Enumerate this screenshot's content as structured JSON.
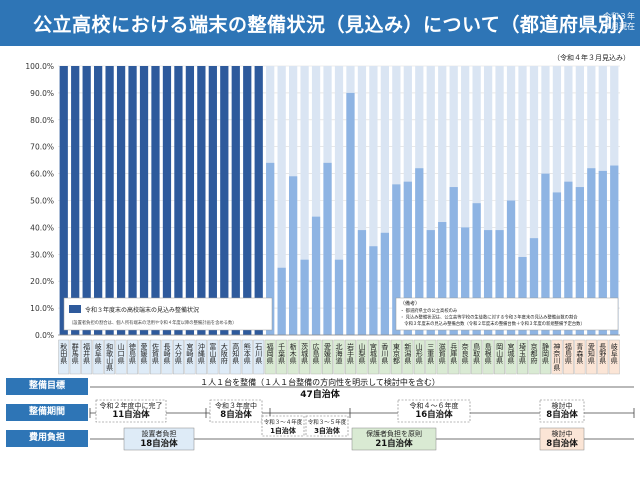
{
  "header": {
    "title": "公立高校における端末の整備状況（見込み）について（都道府県別）",
    "date": "令和３年８月現在"
  },
  "as_of": "（令和４年３月見込み）",
  "legend": {
    "label": "令和３年度末の高校端末の見込み整備状況",
    "sub": "（設置者負担の割合は、個人所有端末の活用や令和４年度以降の整備計画を含める数）",
    "notes_title": "（備考）",
    "notes": [
      "・ 都道府県立の公立高校のみ",
      "・ 見込み整備状況は、公立高等学校の生徒数に対する令和３年度末の見込み整備台数の割合",
      "　令和３年度末の見込み整備台数（令和２年度末の整備台数＋令和３年度の新規整備予定台数）"
    ]
  },
  "colors": {
    "header": "#2e75b6",
    "dark_bar": "#2e5a9c",
    "light_bar": "#8eb4e3",
    "bar_bg": "#dae5f3",
    "green": "#d9ead3",
    "orange": "#fbe5d6",
    "blue_label": "#deebf7"
  },
  "chart_data": {
    "type": "bar",
    "ylim": [
      0,
      100
    ],
    "yticks": [
      "0.0%",
      "10.0%",
      "20.0%",
      "30.0%",
      "40.0%",
      "50.0%",
      "60.0%",
      "70.0%",
      "80.0%",
      "90.0%",
      "100.0%"
    ],
    "categories": [
      "秋田県",
      "群馬県",
      "福井県",
      "岐阜県",
      "和歌山県",
      "山口県",
      "徳島県",
      "愛媛県",
      "佐賀県",
      "長崎県",
      "大分県",
      "宮崎県",
      "沖縄県",
      "富山県",
      "大阪府",
      "高知県",
      "熊本県",
      "石川県",
      "福岡県",
      "千葉県",
      "栃木県",
      "茨城県",
      "広島県",
      "愛媛県",
      "北海道",
      "岩手県",
      "山梨県",
      "宮城県",
      "香川県",
      "東京都",
      "新潟県",
      "山形県",
      "三重県",
      "滋賀県",
      "兵庫県",
      "奈良県",
      "鳥取県",
      "島根県",
      "岡山県",
      "宮城県",
      "埼玉県",
      "京都府",
      "静岡県",
      "神奈川県",
      "福島県",
      "青森県",
      "愛知県",
      "長野県",
      "岐阜県"
    ],
    "category_groups": [
      "blue",
      "blue",
      "blue",
      "blue",
      "blue",
      "blue",
      "blue",
      "blue",
      "blue",
      "blue",
      "blue",
      "blue",
      "blue",
      "blue",
      "blue",
      "blue",
      "blue",
      "blue",
      "green",
      "green",
      "green",
      "green",
      "green",
      "green",
      "green",
      "green",
      "green",
      "green",
      "green",
      "green",
      "green",
      "green",
      "green",
      "green",
      "green",
      "green",
      "green",
      "green",
      "green",
      "green",
      "green",
      "green",
      "green",
      "orange",
      "orange",
      "orange",
      "orange",
      "orange",
      "orange"
    ],
    "series": [
      {
        "name": "令和３年度末の高校端末の見込み整備状況",
        "values": [
          100,
          100,
          100,
          100,
          100,
          100,
          100,
          100,
          100,
          100,
          100,
          100,
          100,
          100,
          100,
          100,
          100,
          100,
          64,
          25,
          59,
          28,
          44,
          64,
          28,
          90,
          39,
          33,
          38,
          56,
          57,
          62,
          39,
          42,
          55,
          40,
          49,
          39,
          39,
          50,
          29,
          36,
          60,
          53,
          57,
          55,
          62,
          61,
          63
        ]
      }
    ]
  },
  "table": {
    "rows": [
      {
        "label": "整備目標",
        "center_text": "１人１台を整備（１人１台整備の方向性を明示して検討中を含む）",
        "center_count": "47自治体"
      },
      {
        "label": "整備期間"
      },
      {
        "label": "費用負担"
      }
    ],
    "period_boxes": [
      {
        "title": "令和２年度中に完了",
        "count": "11自治体"
      },
      {
        "title": "令和３年度中",
        "count": "8自治体"
      },
      {
        "title": "令和３～４年度",
        "count": "1自治体"
      },
      {
        "title": "令和３～５年度",
        "count": "3自治体"
      },
      {
        "title": "令和４～６年度",
        "count": "16自治体"
      },
      {
        "title": "検討中",
        "count": "8自治体"
      }
    ],
    "cost_boxes": [
      {
        "title": "設置者負担",
        "count": "18自治体"
      },
      {
        "title": "保護者負担を原則",
        "count": "21自治体"
      },
      {
        "title": "検討中",
        "count": "8自治体"
      }
    ]
  }
}
